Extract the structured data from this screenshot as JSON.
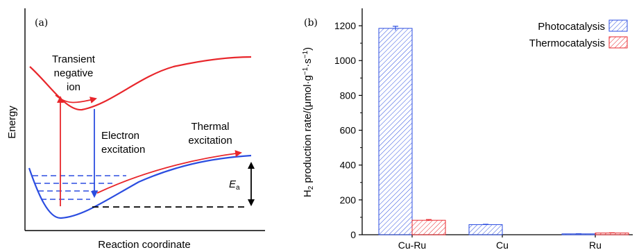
{
  "panel_a": {
    "label": "(a)",
    "ylabel": "Energy",
    "xlabel": "Reaction coordinate",
    "annotations": {
      "transient_1": "Transient",
      "transient_2": "negative",
      "transient_3": "ion",
      "electron_1": "Electron",
      "electron_2": "excitation",
      "thermal_1": "Thermal",
      "thermal_2": "excitation",
      "ea_main": "E",
      "ea_sub": "a"
    },
    "colors": {
      "excited": "#e8262b",
      "ground": "#2b4de0",
      "arrow_black": "#000000"
    }
  },
  "panel_b": {
    "label": "(b)",
    "ylabel_h": "H",
    "ylabel_sub": "2",
    "ylabel_rest": " production rate/(μmol·g",
    "ylabel_sup1": "−1",
    "ylabel_mid": "·s",
    "ylabel_sup2": "−1",
    "ylabel_end": ")"
  },
  "chart_data": {
    "type": "bar",
    "categories": [
      "Cu-Ru",
      "Cu",
      "Ru"
    ],
    "series": [
      {
        "name": "Photocatalysis",
        "values": [
          1185,
          58,
          5
        ],
        "errors": [
          12,
          2,
          1
        ],
        "color": "#2b4de0"
      },
      {
        "name": "Thermocatalysis",
        "values": [
          83,
          0,
          10
        ],
        "errors": [
          4,
          0,
          1
        ],
        "color": "#e8262b"
      }
    ],
    "ylim": [
      0,
      1300
    ],
    "yticks": [
      0,
      200,
      400,
      600,
      800,
      1000,
      1200
    ],
    "legend": "top-right"
  }
}
